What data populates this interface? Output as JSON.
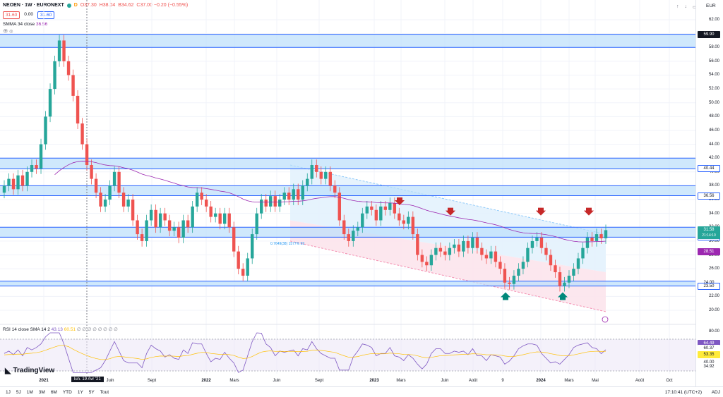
{
  "header": {
    "symbol": "NEOEN · 1W · EURONEXT",
    "open": "O37.30",
    "high": "H38.04",
    "low": "B34.62",
    "close": "C37.00 −0.20 (−0.55%)",
    "bid": "31.60",
    "spread": "0.00",
    "ask": "31.60"
  },
  "indicators": {
    "smma_label": "SMMA 34 close",
    "smma_value": "36.56",
    "rsi_label": "RSI 14 close SMA 14 2",
    "rsi_v1": "43.13",
    "rsi_v2": "60.51",
    "rsi_rest": "∅ ∅ ∅ ∅ ∅ ∅ ∅ ∅"
  },
  "currency": "EUR",
  "price_axis": [
    "62.00",
    "60.00",
    "58.00",
    "56.00",
    "54.00",
    "52.00",
    "50.00",
    "48.00",
    "46.00",
    "44.00",
    "42.00",
    "40.00",
    "38.00",
    "36.00",
    "34.00",
    "32.00",
    "30.00",
    "28.00",
    "26.00",
    "24.00",
    "22.00",
    "20.00"
  ],
  "rsi_axis": [
    "80.00",
    "40.00"
  ],
  "price_tags": [
    {
      "label": "59.90",
      "bg": "#131722",
      "fg": "#ffffff",
      "price": 59.9
    },
    {
      "label": "40.44",
      "bg": "#ffffff",
      "fg": "#131722",
      "price": 40.44,
      "border": "#2962ff"
    },
    {
      "label": "36.56",
      "bg": "#ffffff",
      "fg": "#131722",
      "price": 36.56,
      "border": "#2962ff"
    },
    {
      "label": "31.58",
      "bg": "#26a69a",
      "fg": "#ffffff",
      "price": 31.58
    },
    {
      "label": "30.56",
      "bg": "#ffffff",
      "fg": "#131722",
      "price": 30.56,
      "border": "#2962ff"
    },
    {
      "label": "28.51",
      "bg": "#9c27b0",
      "fg": "#ffffff",
      "price": 28.51
    },
    {
      "label": "24.00",
      "bg": "#ffffff",
      "fg": "#131722",
      "price": 24.0
    },
    {
      "label": "23.50",
      "bg": "#ffffff",
      "fg": "#131722",
      "price": 23.5,
      "border": "#2962ff"
    }
  ],
  "countdown": "21:14:10",
  "rsi_tags": [
    {
      "label": "64.49",
      "bg": "#7e57c2",
      "fg": "#ffffff"
    },
    {
      "label": "60.37",
      "bg": "#ffffff",
      "fg": "#131722"
    },
    {
      "label": "53.35",
      "bg": "#ffeb3b",
      "fg": "#131722"
    },
    {
      "label": "40.00",
      "bg": "#ffffff",
      "fg": "#131722"
    },
    {
      "label": "34.92",
      "bg": "#ffffff",
      "fg": "#131722"
    }
  ],
  "x_axis": [
    {
      "label": "2021",
      "bold": true
    },
    {
      "label": "Juin",
      "bold": false
    },
    {
      "label": "Sept",
      "bold": false
    },
    {
      "label": "2022",
      "bold": true
    },
    {
      "label": "Mars",
      "bold": false
    },
    {
      "label": "Juin",
      "bold": false
    },
    {
      "label": "Sept",
      "bold": false
    },
    {
      "label": "2023",
      "bold": true
    },
    {
      "label": "Mars",
      "bold": false
    },
    {
      "label": "Juin",
      "bold": false
    },
    {
      "label": "Août",
      "bold": false
    },
    {
      "label": "9",
      "bold": false
    },
    {
      "label": "2024",
      "bold": true
    },
    {
      "label": "Mars",
      "bold": false
    },
    {
      "label": "Mai",
      "bold": false
    },
    {
      "label": "Août",
      "bold": false
    },
    {
      "label": "Oct",
      "bold": false
    }
  ],
  "cursor_date": "lun. 19 Avr '21",
  "channel_label": "0.7649(38) 1577% 99",
  "timeframes": [
    "1J",
    "5J",
    "1M",
    "3M",
    "6M",
    "YTD",
    "1Y",
    "5Y",
    "Tout"
  ],
  "clock": "17:10:41 (UTC+2)",
  "adj": "ADJ",
  "brand": "TradingView",
  "colors": {
    "up": "#26a69a",
    "down": "#ef5350",
    "zone": "#2962ff",
    "smma": "#9c27b0",
    "rsi": "#7e57c2",
    "rsi_ma": "#ffc107"
  }
}
